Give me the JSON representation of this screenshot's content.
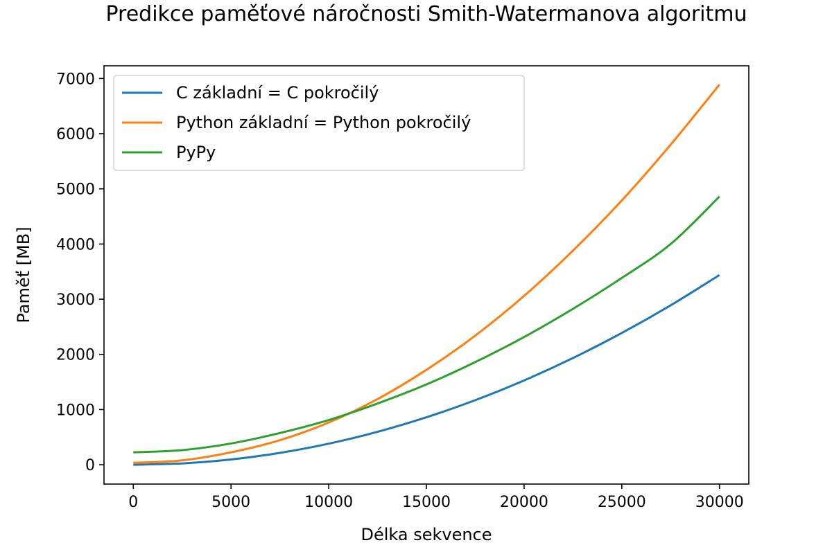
{
  "chart_data": {
    "type": "line",
    "title": "Predikce paměťové náročnosti Smith-Watermanova algoritmu",
    "xlabel": "Délka sekvence",
    "ylabel": "Paměť [MB]",
    "xlim": [
      -1500,
      31500
    ],
    "ylim": [
      -350,
      7230
    ],
    "xticks": [
      0,
      5000,
      10000,
      15000,
      20000,
      25000,
      30000
    ],
    "yticks": [
      0,
      1000,
      2000,
      3000,
      4000,
      5000,
      6000,
      7000
    ],
    "grid": false,
    "legend_position": "top-left",
    "x": [
      0,
      2500,
      5000,
      7500,
      10000,
      12500,
      15000,
      17500,
      20000,
      22500,
      25000,
      27500,
      30000
    ],
    "series": [
      {
        "name": "C základní = C pokročilý",
        "color": "#1f77b4",
        "values": [
          0,
          24,
          95,
          215,
          382,
          597,
          860,
          1170,
          1528,
          1934,
          2388,
          2889,
          3438
        ]
      },
      {
        "name": "Python základní = Python pokročilý",
        "color": "#ff7f0e",
        "values": [
          35,
          80,
          225,
          445,
          765,
          1190,
          1720,
          2340,
          3060,
          3880,
          4790,
          5800,
          6890
        ]
      },
      {
        "name": "PyPy",
        "color": "#2ca02c",
        "values": [
          225,
          265,
          385,
          575,
          810,
          1110,
          1455,
          1860,
          2315,
          2825,
          3385,
          4000,
          4860
        ]
      }
    ]
  }
}
